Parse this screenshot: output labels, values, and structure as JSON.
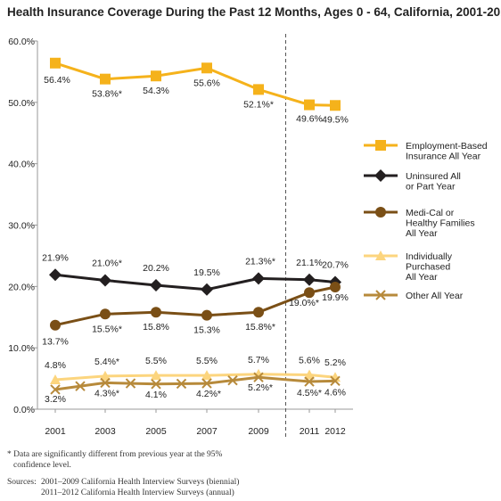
{
  "title": "Health Insurance Coverage During the Past 12 Months, Ages 0 - 64, California, 2001-2012",
  "chart_data": {
    "type": "line",
    "x": [
      "2001",
      "2003",
      "2005",
      "2007",
      "2009",
      "2011",
      "2012"
    ],
    "ylim": [
      0,
      60
    ],
    "y_ticks": [
      "0.0%",
      "10.0%",
      "20.0%",
      "30.0%",
      "40.0%",
      "50.0%",
      "60.0%"
    ],
    "grid": false,
    "legend_position": "right",
    "divider_between": [
      "2009",
      "2011"
    ],
    "series": [
      {
        "name": "Employment-Based Insurance All Year",
        "legend_lines": [
          "Employment-Based",
          "Insurance All Year"
        ],
        "marker": "square",
        "color": "#f5b21b",
        "values": [
          56.4,
          53.8,
          54.3,
          55.6,
          52.1,
          49.6,
          49.5
        ],
        "labels": [
          "56.4%",
          "53.8%*",
          "54.3%",
          "55.6%",
          "52.1%*",
          "49.6%",
          "49.5%"
        ]
      },
      {
        "name": "Uninsured All or Part Year",
        "legend_lines": [
          "Uninsured All",
          "or Part Year"
        ],
        "marker": "diamond",
        "color": "#231f20",
        "values": [
          21.9,
          21.0,
          20.2,
          19.5,
          21.3,
          21.1,
          20.7
        ],
        "labels": [
          "21.9%",
          "21.0%*",
          "20.2%",
          "19.5%",
          "21.3%*",
          "21.1%",
          "20.7%"
        ]
      },
      {
        "name": "Medi-Cal or Healthy Families All Year",
        "legend_lines": [
          "Medi-Cal or",
          "Healthy Families",
          "All Year"
        ],
        "marker": "circle",
        "color": "#7a4f16",
        "values": [
          13.7,
          15.5,
          15.8,
          15.3,
          15.8,
          19.0,
          19.9
        ],
        "labels": [
          "13.7%",
          "15.5%*",
          "15.8%",
          "15.3%",
          "15.8%*",
          "19.0%*",
          "19.9%"
        ]
      },
      {
        "name": "Individually Purchased All Year",
        "legend_lines": [
          "Individually",
          "Purchased",
          "All Year"
        ],
        "marker": "triangle",
        "color": "#fcd57e",
        "values": [
          4.8,
          5.4,
          5.5,
          5.5,
          5.7,
          5.6,
          5.2
        ],
        "labels": [
          "4.8%",
          "5.4%*",
          "5.5%",
          "5.5%",
          "5.7%",
          "5.6%",
          "5.2%"
        ]
      },
      {
        "name": "Other All Year",
        "legend_lines": [
          "Other All Year"
        ],
        "marker": "x",
        "color": "#b78a3b",
        "values": [
          3.2,
          4.3,
          4.1,
          4.2,
          5.2,
          4.5,
          4.6
        ],
        "labels": [
          "3.2%",
          "4.3%*",
          "4.1%",
          "4.2%*",
          "5.2%*",
          "4.5%*",
          "4.6%"
        ]
      }
    ]
  },
  "footnote": {
    "note_lines": [
      "* Data are significantly different from previous year at the 95%",
      "confidence level."
    ],
    "sources_label": "Sources:",
    "sources_lines": [
      "2001–2009 California Health Interview Surveys (biennial)",
      "2011–2012 California Health Interview Surveys (annual)"
    ]
  }
}
